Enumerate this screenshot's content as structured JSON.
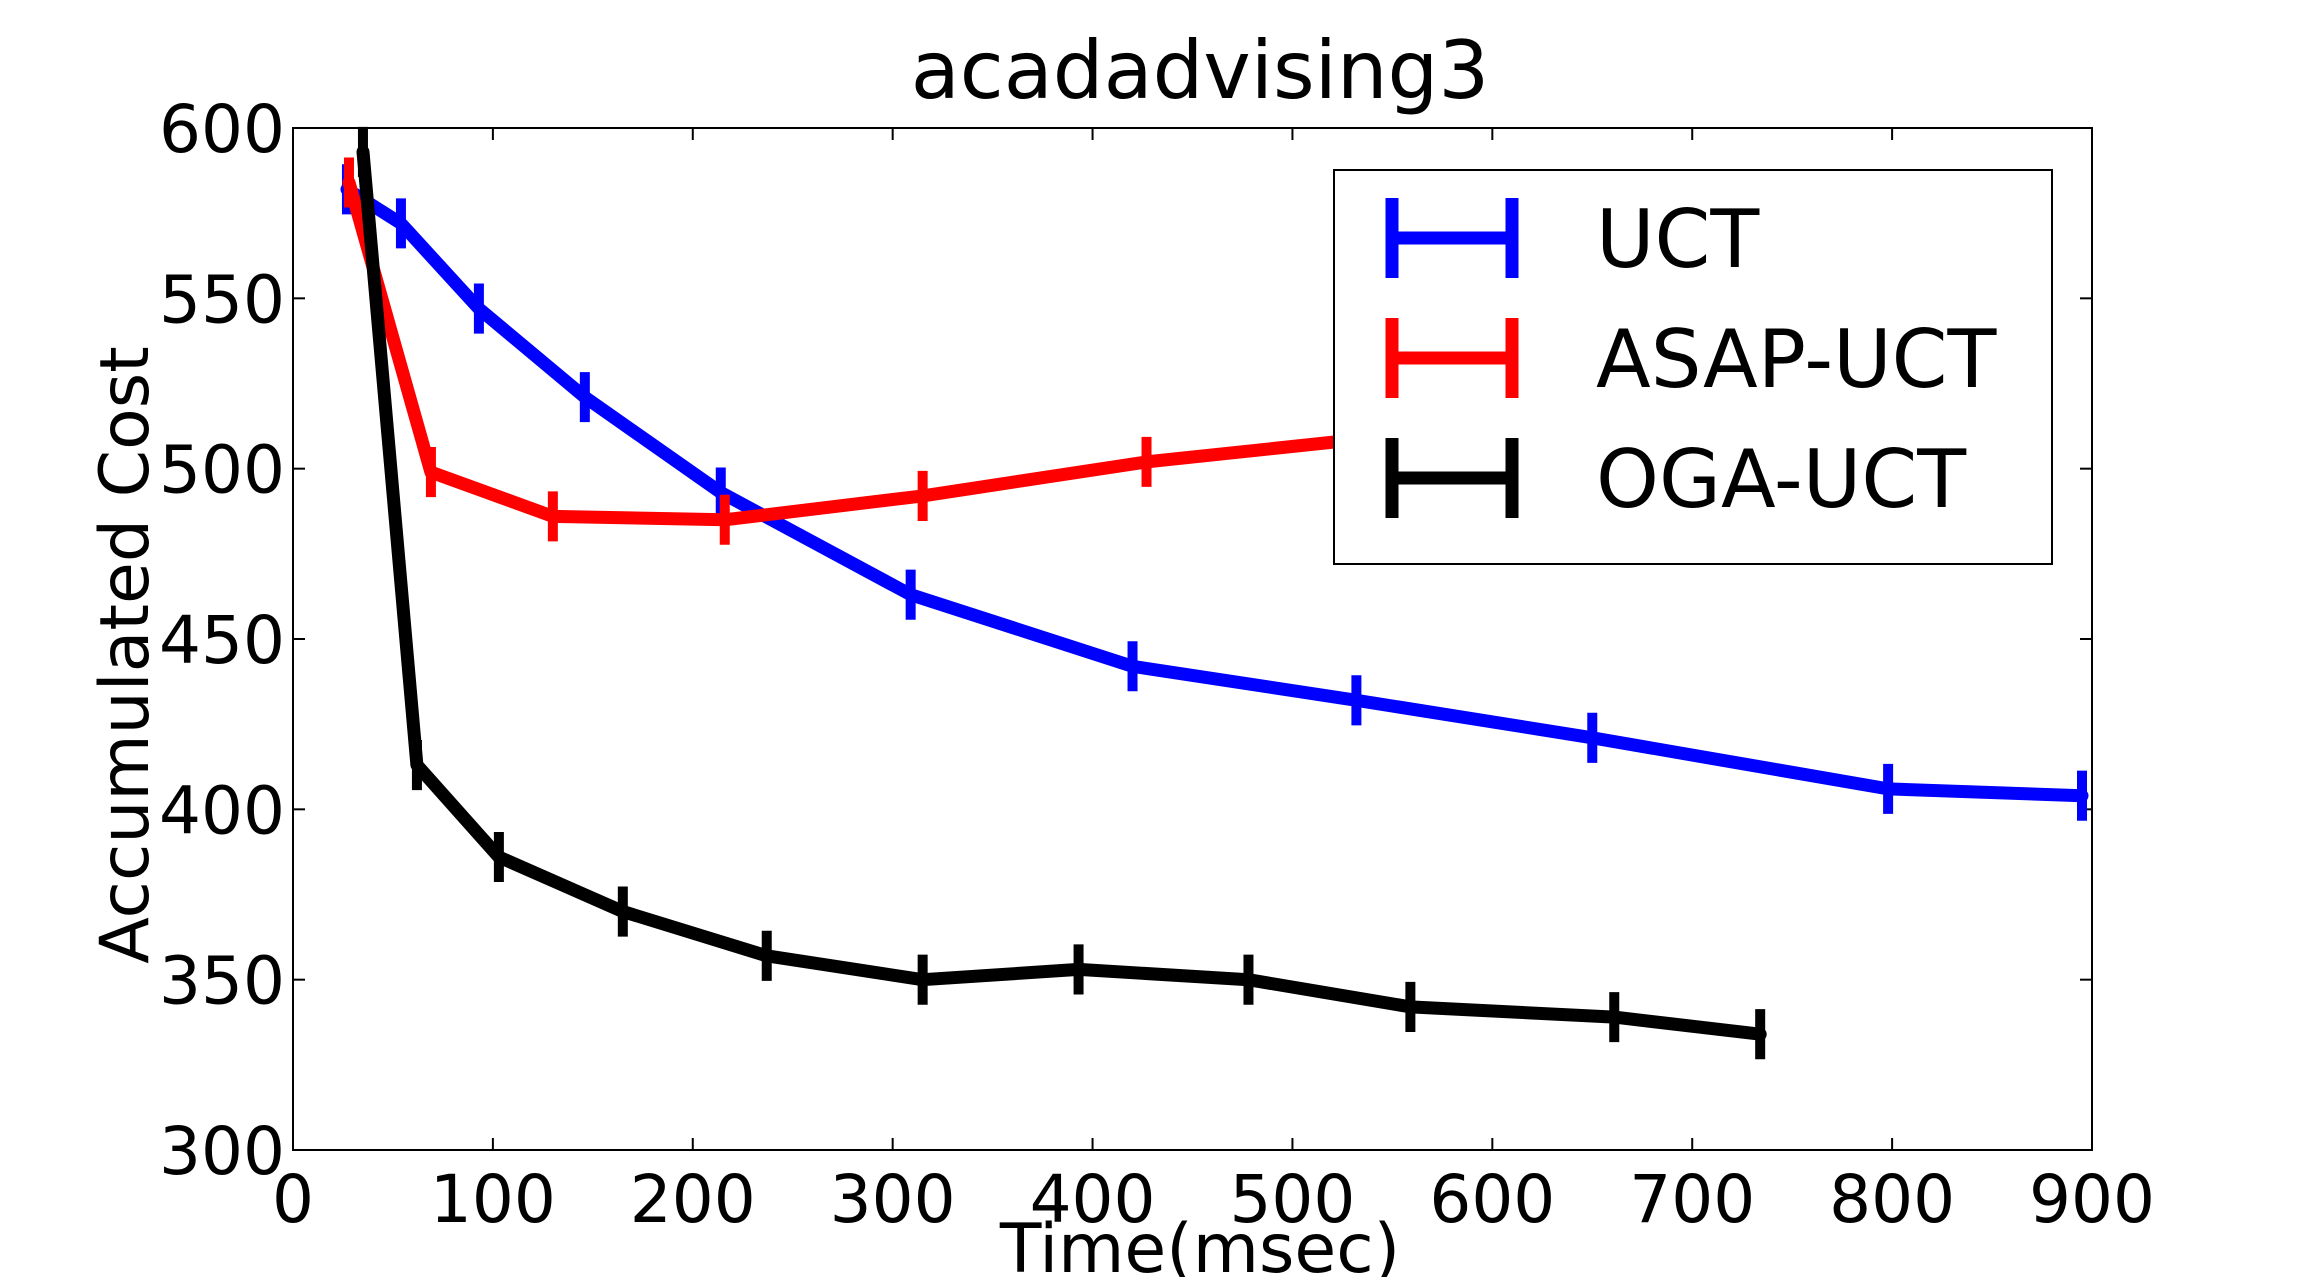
{
  "chart_data": {
    "type": "line",
    "title": "acadadvising3",
    "xlabel": "Time(msec)",
    "ylabel": "Accumulated Cost",
    "xlim": [
      0,
      900
    ],
    "ylim": [
      300,
      600
    ],
    "xticks": [
      0,
      100,
      200,
      300,
      400,
      500,
      600,
      700,
      800,
      900
    ],
    "yticks": [
      300,
      350,
      400,
      450,
      500,
      550,
      600
    ],
    "grid": false,
    "legend_position": "top-right",
    "series": [
      {
        "name": "UCT",
        "color": "#0000ff",
        "x": [
          27,
          54,
          93,
          146,
          214,
          309,
          420,
          532,
          650,
          798,
          895
        ],
        "y": [
          582,
          572,
          547,
          521,
          493,
          463,
          442,
          432,
          421,
          406,
          404
        ],
        "err": [
          5,
          5,
          5,
          5,
          5,
          5,
          5,
          5,
          5,
          5,
          5
        ]
      },
      {
        "name": "ASAP-UCT",
        "color": "#ff0000",
        "x": [
          28,
          69,
          130,
          216,
          315,
          427,
          540
        ],
        "y": [
          584,
          499,
          486,
          485,
          492,
          502,
          509
        ],
        "err": [
          5,
          5,
          5,
          5,
          5,
          5,
          5
        ]
      },
      {
        "name": "OGA-UCT",
        "color": "#000000",
        "x": [
          35,
          62,
          103,
          165,
          237,
          315,
          393,
          478,
          559,
          661,
          734
        ],
        "y": [
          593,
          413,
          386,
          370,
          357,
          350,
          353,
          350,
          342,
          339,
          334
        ],
        "err": [
          5,
          5,
          5,
          5,
          5,
          5,
          5,
          5,
          5,
          5,
          5
        ]
      }
    ]
  }
}
